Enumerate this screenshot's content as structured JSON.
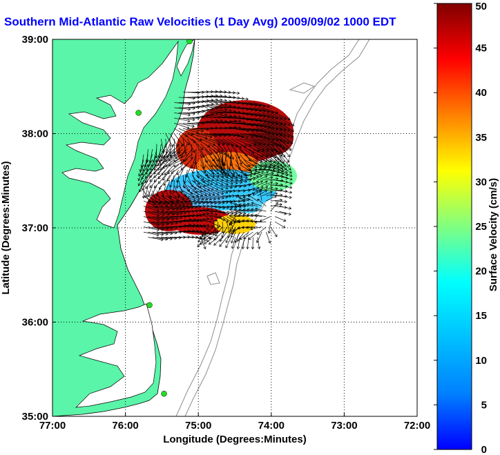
{
  "title": "Southern Mid-Atlantic Raw Velocities (1 Day Avg) 2009/09/02 1000 EDT",
  "xlabel": "Longitude (Degrees:Minutes)",
  "ylabel": "Latitude (Degrees:Minutes)",
  "colorbar_label": "Surface Velocity (cm/s)",
  "colors": {
    "land": "#5af5a8",
    "coastline": "#000000",
    "bathymetry": "#8c8c8c",
    "title": "#0000ff",
    "station": "#22dd22"
  },
  "chart_data": {
    "type": "heatmap",
    "x_ticks": [
      "77:00",
      "76:00",
      "75:00",
      "74:00",
      "73:00",
      "72:00"
    ],
    "y_ticks": [
      "39:00",
      "38:00",
      "37:00",
      "36:00",
      "35:00"
    ],
    "xlim": [
      -77,
      -72
    ],
    "ylim": [
      35,
      39
    ],
    "grid": true,
    "colorbar": {
      "min": 0,
      "max": 50,
      "ticks": [
        50,
        45,
        40,
        35,
        30,
        25,
        20,
        15,
        10,
        5,
        0
      ],
      "colormap": "jet"
    },
    "stations": [
      {
        "lon": -75.12,
        "lat": 38.98
      },
      {
        "lon": -75.82,
        "lat": 38.22
      },
      {
        "lon": -75.67,
        "lat": 36.18
      },
      {
        "lon": -75.47,
        "lat": 35.24
      }
    ],
    "velocity_field": [
      {
        "lon": -74.95,
        "lat": 38.2,
        "speed": 46,
        "dir": 70
      },
      {
        "lon": -74.7,
        "lat": 38.1,
        "speed": 48,
        "dir": 80
      },
      {
        "lon": -74.4,
        "lat": 38.05,
        "speed": 49,
        "dir": 95
      },
      {
        "lon": -74.15,
        "lat": 37.95,
        "speed": 47,
        "dir": 110
      },
      {
        "lon": -73.95,
        "lat": 37.85,
        "speed": 40,
        "dir": 150
      },
      {
        "lon": -74.6,
        "lat": 37.8,
        "speed": 42,
        "dir": 200
      },
      {
        "lon": -75.2,
        "lat": 37.75,
        "speed": 38,
        "dir": 250
      },
      {
        "lon": -75.55,
        "lat": 37.55,
        "speed": 15,
        "dir": 230
      },
      {
        "lon": -74.9,
        "lat": 37.5,
        "speed": 13,
        "dir": 120
      },
      {
        "lon": -74.6,
        "lat": 37.35,
        "speed": 9,
        "dir": 90
      },
      {
        "lon": -74.25,
        "lat": 37.5,
        "speed": 18,
        "dir": 60
      },
      {
        "lon": -74.3,
        "lat": 37.2,
        "speed": 17,
        "dir": 280
      },
      {
        "lon": -75.55,
        "lat": 37.2,
        "speed": 47,
        "dir": 100
      },
      {
        "lon": -75.3,
        "lat": 37.05,
        "speed": 44,
        "dir": 80
      },
      {
        "lon": -75.0,
        "lat": 37.1,
        "speed": 28,
        "dir": 70
      },
      {
        "lon": -74.8,
        "lat": 36.95,
        "speed": 22,
        "dir": 240
      }
    ]
  }
}
